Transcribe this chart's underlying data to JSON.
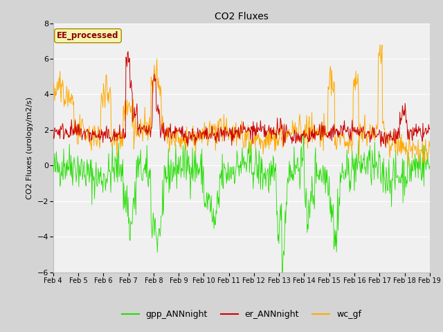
{
  "title": "CO2 Fluxes",
  "ylabel": "CO2 Fluxes (urology/m2/s)",
  "ylim": [
    -6,
    8
  ],
  "yticks": [
    -6,
    -4,
    -2,
    0,
    2,
    4,
    6,
    8
  ],
  "n_points": 720,
  "annotation_text": "EE_processed",
  "annotation_color": "#8B0000",
  "annotation_bg": "#f5f5b0",
  "line_colors": {
    "gpp": "#22dd00",
    "er": "#cc0000",
    "wc": "#ffaa00"
  },
  "legend_labels": [
    "gpp_ANNnight",
    "er_ANNnight",
    "wc_gf"
  ],
  "fig_bg": "#d4d4d4",
  "plot_bg": "#f0f0f0",
  "grid_color": "#ffffff",
  "seed": 42
}
